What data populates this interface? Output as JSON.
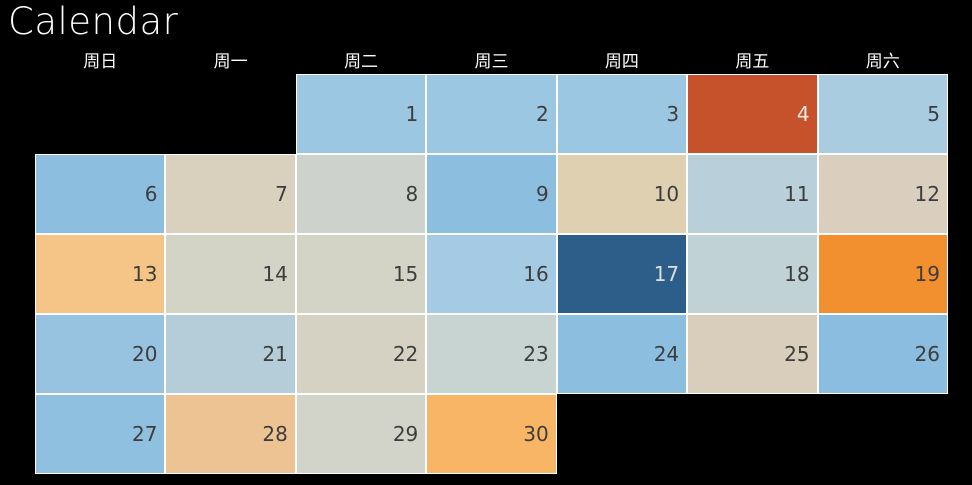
{
  "title": "Calendar",
  "chart_data": {
    "type": "heatmap",
    "title": "Calendar",
    "subtitle": "",
    "columns": [
      "周日",
      "周一",
      "周二",
      "周三",
      "周四",
      "周五",
      "周六"
    ],
    "layout": {
      "grid_rows": 5,
      "grid_cols": 7,
      "background": "#000000",
      "gridline_color": "#ffffff",
      "legend": "none"
    },
    "default_text_color": "#3D3D3D",
    "cells": [
      {
        "day": 1,
        "row": 0,
        "col": 2,
        "color": "#9BC7E3"
      },
      {
        "day": 2,
        "row": 0,
        "col": 3,
        "color": "#9BC7E3"
      },
      {
        "day": 3,
        "row": 0,
        "col": 4,
        "color": "#9BC7E3"
      },
      {
        "day": 4,
        "row": 0,
        "col": 5,
        "color": "#C6522C",
        "text_color": "#F0E9E2"
      },
      {
        "day": 5,
        "row": 0,
        "col": 6,
        "color": "#A9CCE0"
      },
      {
        "day": 6,
        "row": 1,
        "col": 0,
        "color": "#8CBEE0"
      },
      {
        "day": 7,
        "row": 1,
        "col": 1,
        "color": "#D9D1BE"
      },
      {
        "day": 8,
        "row": 1,
        "col": 2,
        "color": "#CDD3CC"
      },
      {
        "day": 9,
        "row": 1,
        "col": 3,
        "color": "#8CBEE0"
      },
      {
        "day": 10,
        "row": 1,
        "col": 4,
        "color": "#DFD0B2"
      },
      {
        "day": 11,
        "row": 1,
        "col": 5,
        "color": "#B9CFD9"
      },
      {
        "day": 12,
        "row": 1,
        "col": 6,
        "color": "#DACFBF"
      },
      {
        "day": 13,
        "row": 2,
        "col": 0,
        "color": "#F5C588"
      },
      {
        "day": 14,
        "row": 2,
        "col": 1,
        "color": "#D3D4C6"
      },
      {
        "day": 15,
        "row": 2,
        "col": 2,
        "color": "#D3D4C6"
      },
      {
        "day": 16,
        "row": 2,
        "col": 3,
        "color": "#A4CAE4"
      },
      {
        "day": 17,
        "row": 2,
        "col": 4,
        "color": "#2D5E8A",
        "text_color": "#D9DFE5"
      },
      {
        "day": 18,
        "row": 2,
        "col": 5,
        "color": "#C0D2D6"
      },
      {
        "day": 19,
        "row": 2,
        "col": 6,
        "color": "#F2902F"
      },
      {
        "day": 20,
        "row": 3,
        "col": 0,
        "color": "#97C3E1"
      },
      {
        "day": 21,
        "row": 3,
        "col": 1,
        "color": "#B5CDD9"
      },
      {
        "day": 22,
        "row": 3,
        "col": 2,
        "color": "#D6D2C3"
      },
      {
        "day": 23,
        "row": 3,
        "col": 3,
        "color": "#C7D4D2"
      },
      {
        "day": 24,
        "row": 3,
        "col": 4,
        "color": "#8CBEE0"
      },
      {
        "day": 25,
        "row": 3,
        "col": 5,
        "color": "#D9CDBB"
      },
      {
        "day": 26,
        "row": 3,
        "col": 6,
        "color": "#8ABDE0"
      },
      {
        "day": 27,
        "row": 4,
        "col": 0,
        "color": "#90C0DF"
      },
      {
        "day": 28,
        "row": 4,
        "col": 1,
        "color": "#EEC394"
      },
      {
        "day": 29,
        "row": 4,
        "col": 2,
        "color": "#D2D3C9"
      },
      {
        "day": 30,
        "row": 4,
        "col": 3,
        "color": "#F8B566"
      }
    ]
  }
}
